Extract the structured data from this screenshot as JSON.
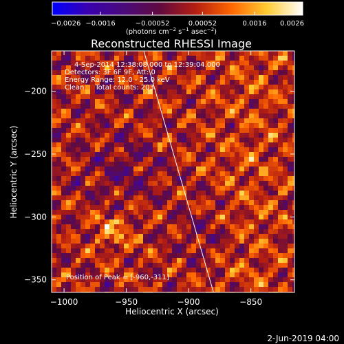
{
  "colorbar": {
    "ticks": [
      "−0.0026",
      "−0.0016",
      "−0.00052",
      "0.00052",
      "0.0016",
      "0.0026"
    ],
    "tick_values": [
      -0.0026,
      -0.0016,
      -0.00052,
      0.00052,
      0.0016,
      0.0026
    ],
    "units_main": "(photons cm",
    "units_sup1": "−2",
    "units_mid": " s",
    "units_sup2": "−1",
    "units_mid2": " asec",
    "units_sup3": "−2",
    "units_end": ")",
    "colors": [
      "#0000ff",
      "#3a00b0",
      "#4a0a7a",
      "#600a40",
      "#b41e12",
      "#ff6600",
      "#ffcc33",
      "#ffffff"
    ]
  },
  "chart_data": {
    "type": "heatmap",
    "title": "Reconstructed RHESSI Image",
    "xlabel": "Heliocentric X (arcsec)",
    "ylabel": "Heliocentric Y (arcsec)",
    "xlim": [
      -1010,
      -815
    ],
    "ylim": [
      -360,
      -168
    ],
    "xticks": [
      -1000,
      -950,
      -900,
      -850
    ],
    "xtick_labels": [
      "−1000",
      "−950",
      "−900",
      "−850"
    ],
    "yticks": [
      -200,
      -250,
      -300,
      -350
    ],
    "ytick_labels": [
      "−200",
      "−250",
      "−300",
      "−350"
    ],
    "limb_line": {
      "x": [
        -936,
        -880
      ],
      "y": [
        -168,
        -360
      ]
    },
    "peak": {
      "x": -960,
      "y": -311
    },
    "grid": false
  },
  "annotations": {
    "line1": "4-Sep-2014 12:38:08.000 to 12:39:04.000",
    "line2": "Detectors: 3F 6F 9F, Att: 0",
    "line3": "Energy Range: 12.0 - 25.0 keV",
    "line4": "Clean     Total counts: 203.",
    "peak": "Position of Peak = [-960,-311]"
  },
  "footer": {
    "timestamp": "2-Jun-2019 04:00"
  }
}
